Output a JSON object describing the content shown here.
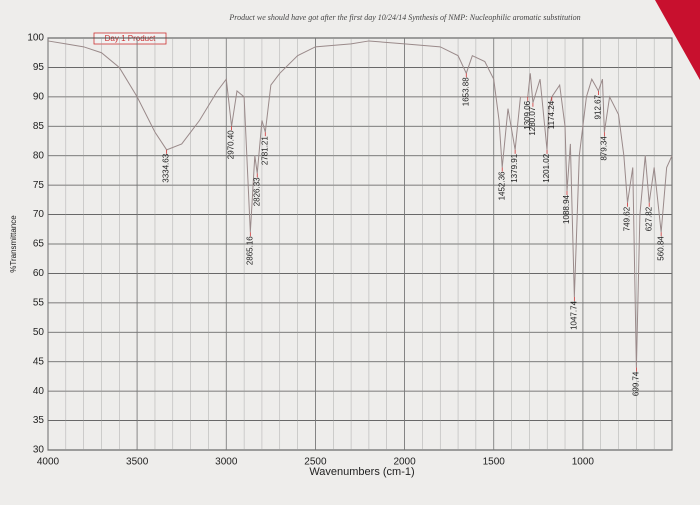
{
  "chart_data": {
    "type": "line",
    "title": "Product we should have got after the first day   10/24/14   Synthesis of NMP: Nucleophilic aromatic substitution",
    "legend_label": "Day 1 Product",
    "x_label": "Wavenumbers (cm-1)",
    "y_label": "%Transmittance",
    "xlim": [
      4000,
      500
    ],
    "xticks": [
      4000,
      3500,
      3000,
      2500,
      2000,
      1500,
      1000
    ],
    "ylim": [
      30,
      100
    ],
    "yticks": [
      30,
      35,
      40,
      45,
      50,
      55,
      60,
      65,
      70,
      75,
      80,
      85,
      90,
      95,
      100
    ],
    "grid": true,
    "x": [
      4000,
      3900,
      3800,
      3700,
      3600,
      3500,
      3400,
      3334.63,
      3250,
      3150,
      3050,
      3000,
      2970.4,
      2940,
      2900,
      2865.16,
      2840,
      2826.33,
      2800,
      2781.21,
      2750,
      2700,
      2600,
      2500,
      2300,
      2200,
      2000,
      1800,
      1700,
      1653.88,
      1620,
      1550,
      1500,
      1470,
      1452.36,
      1420,
      1379.91,
      1350,
      1309.06,
      1295,
      1280.07,
      1240,
      1201.02,
      1190,
      1174.24,
      1130,
      1100,
      1088.94,
      1070,
      1047.74,
      1020,
      980,
      950,
      912.67,
      890,
      879.34,
      850,
      800,
      770,
      749.62,
      720,
      699.74,
      680,
      650,
      627.82,
      600,
      560.84,
      530,
      500
    ],
    "series": [
      {
        "name": "Day 1 Product",
        "color": "#9a8a8a",
        "values": [
          99.5,
          99,
          98.5,
          97.5,
          95,
          90,
          84,
          81,
          82,
          86,
          91,
          93,
          85,
          91,
          90,
          67,
          80,
          77,
          86,
          84,
          92,
          94,
          97,
          98.5,
          99,
          99.5,
          99,
          98.5,
          97,
          94,
          97,
          96,
          93,
          86,
          78,
          88,
          81,
          90,
          90,
          94,
          89,
          93,
          81,
          88,
          90,
          92,
          85,
          74,
          82,
          56,
          80,
          90,
          93,
          91,
          93,
          84,
          90,
          87,
          80,
          72,
          78,
          44,
          70,
          80,
          72,
          78,
          67,
          78,
          80
        ]
      }
    ],
    "peaks": [
      {
        "x": 3334.63,
        "y": 81,
        "label": "3334.63"
      },
      {
        "x": 2970.4,
        "y": 85,
        "label": "2970.40"
      },
      {
        "x": 2865.16,
        "y": 67,
        "label": "2865.16"
      },
      {
        "x": 2826.33,
        "y": 77,
        "label": "2826.33"
      },
      {
        "x": 2781.21,
        "y": 84,
        "label": "2781.21"
      },
      {
        "x": 1653.88,
        "y": 94,
        "label": "1653.88"
      },
      {
        "x": 1452.36,
        "y": 78,
        "label": "1452.36"
      },
      {
        "x": 1379.91,
        "y": 81,
        "label": "1379.91"
      },
      {
        "x": 1309.06,
        "y": 90,
        "label": "1309.06"
      },
      {
        "x": 1280.07,
        "y": 89,
        "label": "1280.07"
      },
      {
        "x": 1201.02,
        "y": 81,
        "label": "1201.02"
      },
      {
        "x": 1174.24,
        "y": 90,
        "label": "1174.24"
      },
      {
        "x": 1088.94,
        "y": 74,
        "label": "1088.94"
      },
      {
        "x": 1047.74,
        "y": 56,
        "label": "1047.74"
      },
      {
        "x": 912.67,
        "y": 91,
        "label": "912.67"
      },
      {
        "x": 879.34,
        "y": 84,
        "label": "879.34"
      },
      {
        "x": 749.62,
        "y": 72,
        "label": "749.62"
      },
      {
        "x": 699.74,
        "y": 44,
        "label": "699.74"
      },
      {
        "x": 627.82,
        "y": 72,
        "label": "627.82"
      },
      {
        "x": 560.84,
        "y": 67,
        "label": "560.84"
      }
    ]
  }
}
